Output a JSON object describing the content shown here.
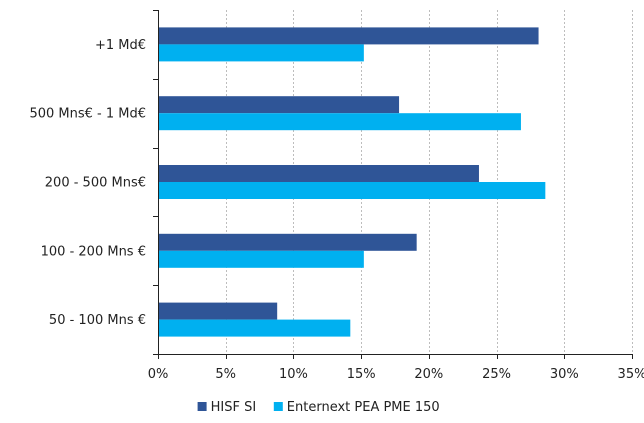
{
  "chart_data": {
    "type": "bar",
    "orientation": "horizontal",
    "title": "",
    "xlabel": "",
    "ylabel": "",
    "categories": [
      "+1 Md€",
      "500 Mns€ - 1 Md€",
      "200 - 500 Mns€",
      "100 - 200 Mns €",
      "50 - 100 Mns €"
    ],
    "series": [
      {
        "name": "HISF SI",
        "color": "#2f5597",
        "values": [
          28.1,
          17.8,
          23.7,
          19.1,
          8.8
        ]
      },
      {
        "name": "Enternext PEA PME 150",
        "color": "#00b0f0",
        "values": [
          15.2,
          26.8,
          28.6,
          15.2,
          14.2
        ]
      }
    ],
    "xlim": [
      0,
      35
    ],
    "xticks": [
      0,
      5,
      10,
      15,
      20,
      25,
      30,
      35
    ],
    "xtick_labels": [
      "0%",
      "5%",
      "10%",
      "15%",
      "20%",
      "25%",
      "30%",
      "35%"
    ],
    "grid": "vertical-dotted",
    "legend_position": "bottom"
  }
}
